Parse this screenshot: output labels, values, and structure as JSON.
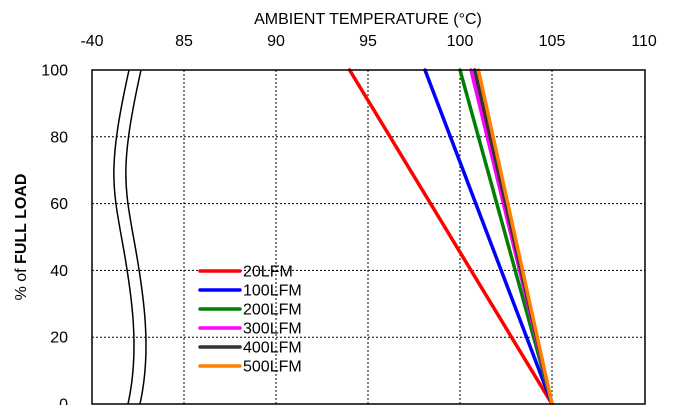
{
  "chart_data": {
    "type": "line",
    "title": "",
    "xlabel": "AMBIENT TEMPERATURE (°C)",
    "ylabel_prefix": "% of ",
    "ylabel_bold": "FULL LOAD",
    "x_axis_position": "top",
    "x_break": {
      "low": -40,
      "high": 85
    },
    "x_ticks": [
      {
        "label": "-40",
        "value": -40
      },
      {
        "label": "85",
        "value": 85
      },
      {
        "label": "90",
        "value": 90
      },
      {
        "label": "95",
        "value": 95
      },
      {
        "label": "100",
        "value": 100
      },
      {
        "label": "105",
        "value": 105
      },
      {
        "label": "110",
        "value": 110
      }
    ],
    "xlim": [
      80,
      110
    ],
    "ylim": [
      0,
      100
    ],
    "y_ticks": [
      "0",
      "20",
      "40",
      "60",
      "80",
      "100"
    ],
    "grid": true,
    "legend": "bottom-left",
    "series": [
      {
        "name": "20LFM",
        "color": "#ff0000",
        "x": [
          94.0,
          105.0
        ],
        "y": [
          100,
          0
        ]
      },
      {
        "name": "100LFM",
        "color": "#0000ff",
        "x": [
          98.1,
          105.0
        ],
        "y": [
          100,
          0
        ]
      },
      {
        "name": "200LFM",
        "color": "#008000",
        "x": [
          100.0,
          105.0
        ],
        "y": [
          100,
          0
        ]
      },
      {
        "name": "300LFM",
        "color": "#ff00ff",
        "x": [
          100.6,
          105.0
        ],
        "y": [
          100,
          0
        ]
      },
      {
        "name": "400LFM",
        "color": "#333333",
        "x": [
          100.8,
          105.0
        ],
        "y": [
          100,
          0
        ]
      },
      {
        "name": "500LFM",
        "color": "#ff7f00",
        "x": [
          101.0,
          105.0
        ],
        "y": [
          100,
          0
        ]
      }
    ]
  }
}
